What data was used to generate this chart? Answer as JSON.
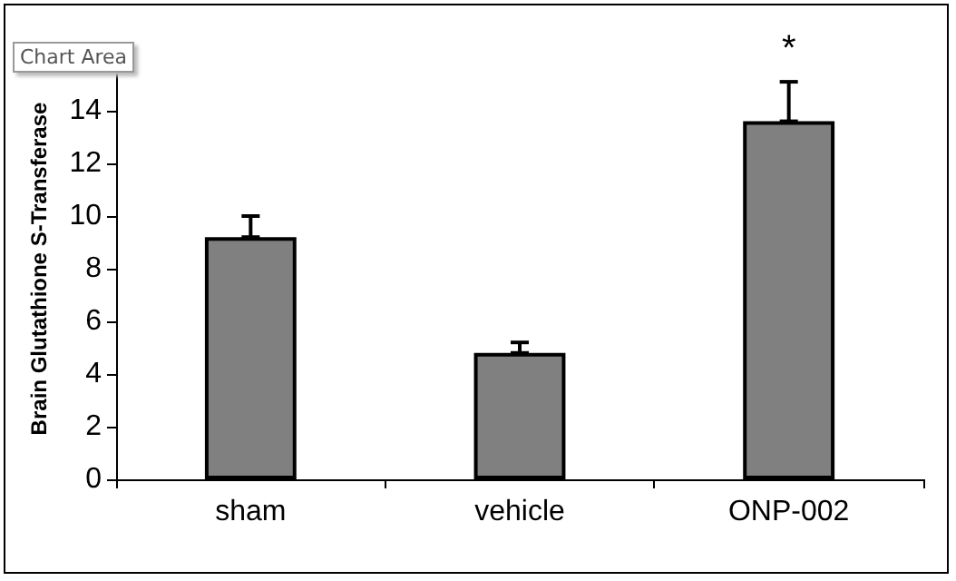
{
  "chart_data": {
    "type": "bar",
    "ylabel": "Brain Glutathione S-Transferase",
    "categories": [
      "sham",
      "vehicle",
      "ONP-002"
    ],
    "values": [
      9.2,
      4.8,
      13.6
    ],
    "errors": [
      [
        9.2,
        10.0
      ],
      [
        4.8,
        5.2
      ],
      [
        13.6,
        15.1
      ]
    ],
    "color": "#808080",
    "ylim": [
      0,
      16
    ],
    "yticks": [
      0,
      2,
      4,
      6,
      8,
      10,
      12,
      14
    ],
    "grid": false,
    "annotations": [
      "*",
      "Chart Area"
    ]
  }
}
